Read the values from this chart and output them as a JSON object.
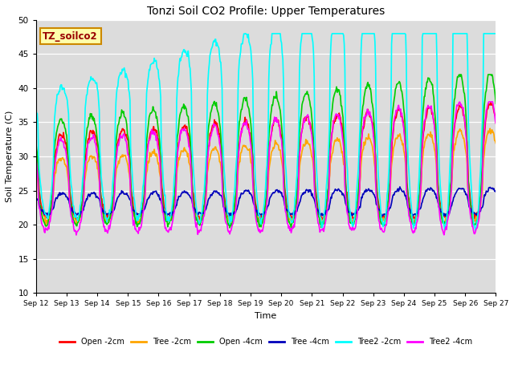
{
  "title": "Tonzi Soil CO2 Profile: Upper Temperatures",
  "xlabel": "Time",
  "ylabel": "Soil Temperature (C)",
  "ylim": [
    10,
    50
  ],
  "bg_color": "#dcdcdc",
  "fig_bg": "#ffffff",
  "series": [
    {
      "label": "Open -2cm",
      "color": "#ff0000",
      "lw": 1.2
    },
    {
      "label": "Tree -2cm",
      "color": "#ffa500",
      "lw": 1.2
    },
    {
      "label": "Open -4cm",
      "color": "#00cc00",
      "lw": 1.2
    },
    {
      "label": "Tree -4cm",
      "color": "#0000bb",
      "lw": 1.2
    },
    {
      "label": "Tree2 -2cm",
      "color": "#00ffff",
      "lw": 1.2
    },
    {
      "label": "Tree2 -4cm",
      "color": "#ff00ff",
      "lw": 1.2
    }
  ],
  "annotation_text": "TZ_soilco2",
  "tick_labels": [
    "Sep 12",
    "Sep 13",
    "Sep 14",
    "Sep 15",
    "Sep 16",
    "Sep 17",
    "Sep 18",
    "Sep 19",
    "Sep 20",
    "Sep 21",
    "Sep 22",
    "Sep 23",
    "Sep 24",
    "Sep 25",
    "Sep 26",
    "Sep 27"
  ]
}
